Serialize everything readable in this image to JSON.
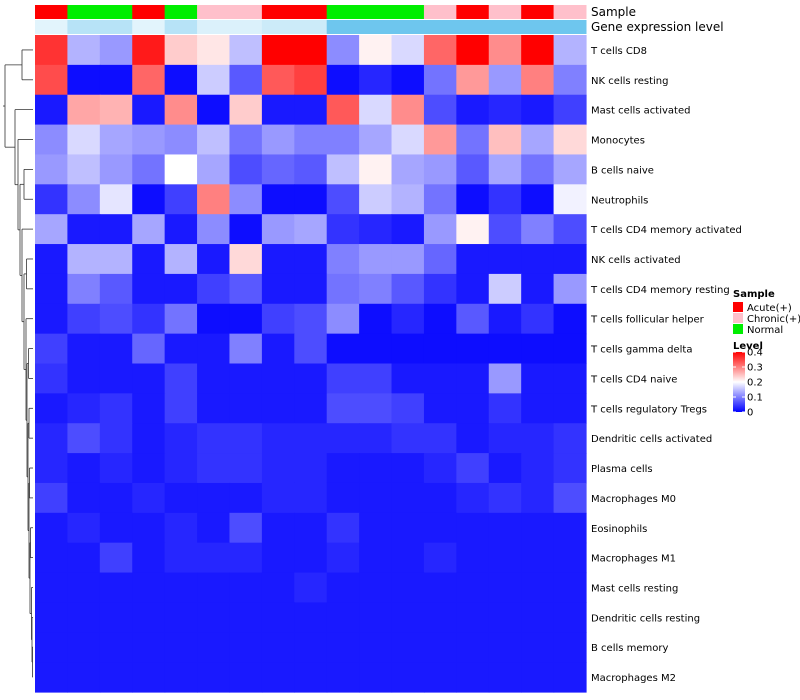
{
  "chart_data": {
    "type": "heatmap",
    "annotation_labels": {
      "sample": "Sample",
      "expression": "Gene expression level"
    },
    "sample_colors": {
      "Acute(+)": "#ff0000",
      "Chronic(+)": "#ffc0cb",
      "Normal": "#00ee00"
    },
    "columns": [
      {
        "sample": "Acute(+)",
        "expression": 0.14
      },
      {
        "sample": "Normal",
        "expression": 0.2
      },
      {
        "sample": "Normal",
        "expression": 0.2
      },
      {
        "sample": "Acute(+)",
        "expression": 0.14
      },
      {
        "sample": "Normal",
        "expression": 0.2
      },
      {
        "sample": "Chronic(+)",
        "expression": 0.15
      },
      {
        "sample": "Chronic(+)",
        "expression": 0.15
      },
      {
        "sample": "Acute(+)",
        "expression": 0.17
      },
      {
        "sample": "Acute(+)",
        "expression": 0.17
      },
      {
        "sample": "Normal",
        "expression": 0.3
      },
      {
        "sample": "Normal",
        "expression": 0.3
      },
      {
        "sample": "Normal",
        "expression": 0.3
      },
      {
        "sample": "Chronic(+)",
        "expression": 0.3
      },
      {
        "sample": "Acute(+)",
        "expression": 0.3
      },
      {
        "sample": "Chronic(+)",
        "expression": 0.3
      },
      {
        "sample": "Acute(+)",
        "expression": 0.3
      },
      {
        "sample": "Chronic(+)",
        "expression": 0.3
      }
    ],
    "rows": [
      "T cells CD8",
      "NK cells resting",
      "Mast cells activated",
      "Monocytes",
      "B cells naive",
      "Neutrophils",
      "T cells CD4 memory activated",
      "NK cells activated",
      "T cells CD4 memory resting",
      "T cells follicular helper",
      "T cells gamma delta",
      "T cells CD4 naive",
      "T cells regulatory  Tregs",
      "Dendritic cells activated",
      "Plasma cells",
      "Macrophages M0",
      "Eosinophils",
      "Macrophages M1",
      "Mast cells resting",
      "Dendritic cells resting",
      "B cells memory",
      "Macrophages M2"
    ],
    "values": [
      [
        0.36,
        0.14,
        0.12,
        0.38,
        0.24,
        0.22,
        0.15,
        0.4,
        0.4,
        0.11,
        0.21,
        0.17,
        0.32,
        0.4,
        0.29,
        0.4,
        0.14
      ],
      [
        0.34,
        0.01,
        0.01,
        0.32,
        0.01,
        0.16,
        0.07,
        0.33,
        0.35,
        0.01,
        0.03,
        0.01,
        0.09,
        0.28,
        0.12,
        0.3,
        0.1
      ],
      [
        0.02,
        0.27,
        0.26,
        0.02,
        0.29,
        0.01,
        0.24,
        0.02,
        0.02,
        0.33,
        0.17,
        0.29,
        0.06,
        0.02,
        0.03,
        0.02,
        0.05
      ],
      [
        0.11,
        0.17,
        0.13,
        0.12,
        0.11,
        0.15,
        0.09,
        0.12,
        0.1,
        0.1,
        0.13,
        0.17,
        0.28,
        0.09,
        0.25,
        0.13,
        0.23
      ],
      [
        0.12,
        0.15,
        0.12,
        0.09,
        0.2,
        0.13,
        0.06,
        0.08,
        0.07,
        0.15,
        0.21,
        0.13,
        0.12,
        0.07,
        0.13,
        0.09,
        0.13
      ],
      [
        0.04,
        0.11,
        0.18,
        0.01,
        0.05,
        0.3,
        0.11,
        0.01,
        0.01,
        0.06,
        0.16,
        0.14,
        0.09,
        0.01,
        0.04,
        0.01,
        0.19
      ],
      [
        0.13,
        0.02,
        0.02,
        0.13,
        0.02,
        0.11,
        0.01,
        0.12,
        0.13,
        0.04,
        0.03,
        0.02,
        0.12,
        0.21,
        0.06,
        0.1,
        0.06
      ],
      [
        0.02,
        0.14,
        0.14,
        0.02,
        0.14,
        0.02,
        0.23,
        0.02,
        0.02,
        0.1,
        0.12,
        0.12,
        0.08,
        0.02,
        0.02,
        0.02,
        0.02
      ],
      [
        0.02,
        0.1,
        0.07,
        0.02,
        0.02,
        0.05,
        0.07,
        0.02,
        0.02,
        0.09,
        0.1,
        0.07,
        0.04,
        0.02,
        0.16,
        0.02,
        0.12
      ],
      [
        0.02,
        0.05,
        0.06,
        0.04,
        0.09,
        0.01,
        0.01,
        0.05,
        0.06,
        0.11,
        0.01,
        0.03,
        0.01,
        0.07,
        0.02,
        0.04,
        0.01
      ],
      [
        0.05,
        0.02,
        0.02,
        0.08,
        0.02,
        0.02,
        0.1,
        0.02,
        0.06,
        0.01,
        0.01,
        0.01,
        0.01,
        0.01,
        0.01,
        0.01,
        0.01
      ],
      [
        0.04,
        0.02,
        0.02,
        0.02,
        0.05,
        0.02,
        0.02,
        0.02,
        0.02,
        0.05,
        0.05,
        0.02,
        0.02,
        0.02,
        0.12,
        0.02,
        0.02
      ],
      [
        0.02,
        0.03,
        0.04,
        0.02,
        0.05,
        0.02,
        0.02,
        0.02,
        0.02,
        0.06,
        0.06,
        0.05,
        0.02,
        0.02,
        0.04,
        0.02,
        0.02
      ],
      [
        0.03,
        0.06,
        0.04,
        0.02,
        0.03,
        0.04,
        0.04,
        0.03,
        0.03,
        0.03,
        0.03,
        0.04,
        0.04,
        0.02,
        0.03,
        0.03,
        0.04
      ],
      [
        0.03,
        0.02,
        0.03,
        0.02,
        0.03,
        0.04,
        0.04,
        0.03,
        0.03,
        0.02,
        0.02,
        0.02,
        0.03,
        0.05,
        0.02,
        0.03,
        0.04
      ],
      [
        0.05,
        0.02,
        0.02,
        0.03,
        0.02,
        0.02,
        0.02,
        0.03,
        0.03,
        0.02,
        0.02,
        0.02,
        0.02,
        0.03,
        0.04,
        0.03,
        0.06
      ],
      [
        0.02,
        0.03,
        0.02,
        0.02,
        0.03,
        0.02,
        0.06,
        0.02,
        0.02,
        0.04,
        0.02,
        0.02,
        0.02,
        0.02,
        0.02,
        0.02,
        0.02
      ],
      [
        0.02,
        0.02,
        0.05,
        0.02,
        0.03,
        0.03,
        0.03,
        0.02,
        0.02,
        0.03,
        0.02,
        0.02,
        0.03,
        0.02,
        0.02,
        0.02,
        0.02
      ],
      [
        0.02,
        0.02,
        0.02,
        0.02,
        0.02,
        0.02,
        0.02,
        0.02,
        0.03,
        0.02,
        0.02,
        0.02,
        0.02,
        0.02,
        0.02,
        0.02,
        0.02
      ],
      [
        0.02,
        0.02,
        0.02,
        0.02,
        0.02,
        0.02,
        0.02,
        0.02,
        0.02,
        0.02,
        0.02,
        0.02,
        0.02,
        0.02,
        0.02,
        0.02,
        0.02
      ],
      [
        0.02,
        0.02,
        0.02,
        0.02,
        0.02,
        0.02,
        0.02,
        0.02,
        0.02,
        0.02,
        0.02,
        0.02,
        0.02,
        0.02,
        0.02,
        0.02,
        0.02
      ],
      [
        0.02,
        0.02,
        0.02,
        0.02,
        0.02,
        0.02,
        0.02,
        0.02,
        0.02,
        0.02,
        0.02,
        0.02,
        0.02,
        0.02,
        0.02,
        0.02,
        0.02
      ]
    ],
    "color_scale": {
      "min": 0,
      "max": 0.4,
      "stops": [
        {
          "value": 0,
          "color": "#0000ff"
        },
        {
          "value": 0.2,
          "color": "#ffffff"
        },
        {
          "value": 0.4,
          "color": "#ff0000"
        }
      ]
    },
    "expression_scale": {
      "min": 0.1,
      "max": 0.3,
      "stops": [
        {
          "value": 0.1,
          "color": "#ffffff"
        },
        {
          "value": 0.3,
          "color": "#6ec6ee"
        }
      ]
    },
    "legend": {
      "sample_title": "Sample",
      "sample_items": [
        "Acute(+)",
        "Chronic(+)",
        "Normal"
      ],
      "level_title": "Level",
      "level_ticks": [
        "0.4",
        "0.3",
        "0.2",
        "0.1",
        "0"
      ],
      "placement": "right"
    },
    "row_dendrogram": true
  }
}
